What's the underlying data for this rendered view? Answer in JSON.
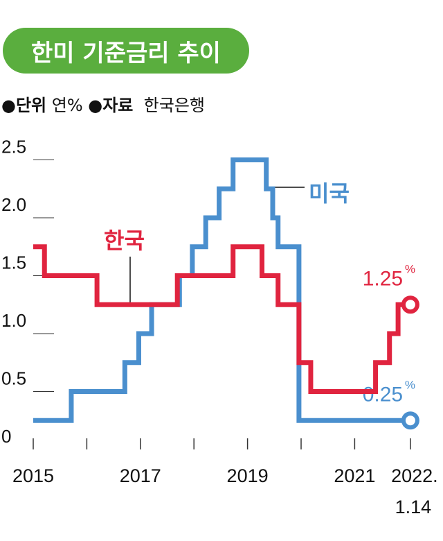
{
  "header": {
    "title": "한미 기준금리 추이",
    "unit_label": "●단위",
    "unit_value": "연%",
    "source_label": "●자료",
    "source_value": "한국은행"
  },
  "chart_data": {
    "type": "line",
    "title": "한미 기준금리 추이",
    "ylabel": "연%",
    "ylim": [
      0,
      2.5
    ],
    "yticks": [
      "0",
      "0.5",
      "1.0",
      "1.5",
      "2.0",
      "2.5"
    ],
    "xlim": [
      2015,
      2022.04
    ],
    "xticks": [
      {
        "label": "2015",
        "x": 2015
      },
      {
        "label": "2017",
        "x": 2017
      },
      {
        "label": "2019",
        "x": 2019
      },
      {
        "label": "2021",
        "x": 2021
      },
      {
        "label": "2022.",
        "label2": "1.14",
        "x": 2022.04
      }
    ],
    "step": true,
    "series": [
      {
        "name": "한국",
        "color": "#e0243f",
        "end_label": "1.25",
        "end_unit": "%",
        "points": [
          [
            2015,
            1.75
          ],
          [
            2015.21,
            1.5
          ],
          [
            2016.19,
            1.25
          ],
          [
            2017.69,
            1.5
          ],
          [
            2018.73,
            1.75
          ],
          [
            2019.27,
            1.5
          ],
          [
            2019.57,
            1.25
          ],
          [
            2019.96,
            0.75
          ],
          [
            2020.18,
            0.5
          ],
          [
            2021.39,
            0.75
          ],
          [
            2021.65,
            1.0
          ],
          [
            2021.81,
            1.25
          ],
          [
            2022.04,
            1.25
          ]
        ]
      },
      {
        "name": "미국",
        "color": "#4a8fce",
        "end_label": "0.25",
        "end_unit": "%",
        "points": [
          [
            2015,
            0.25
          ],
          [
            2015.71,
            0.5
          ],
          [
            2016.71,
            0.75
          ],
          [
            2016.97,
            1.0
          ],
          [
            2017.21,
            1.25
          ],
          [
            2017.73,
            1.5
          ],
          [
            2017.97,
            1.75
          ],
          [
            2018.22,
            2.0
          ],
          [
            2018.47,
            2.25
          ],
          [
            2018.73,
            2.5
          ],
          [
            2019.35,
            2.25
          ],
          [
            2019.47,
            2.0
          ],
          [
            2019.57,
            1.75
          ],
          [
            2019.96,
            0.25
          ],
          [
            2022.04,
            0.25
          ]
        ]
      }
    ]
  }
}
